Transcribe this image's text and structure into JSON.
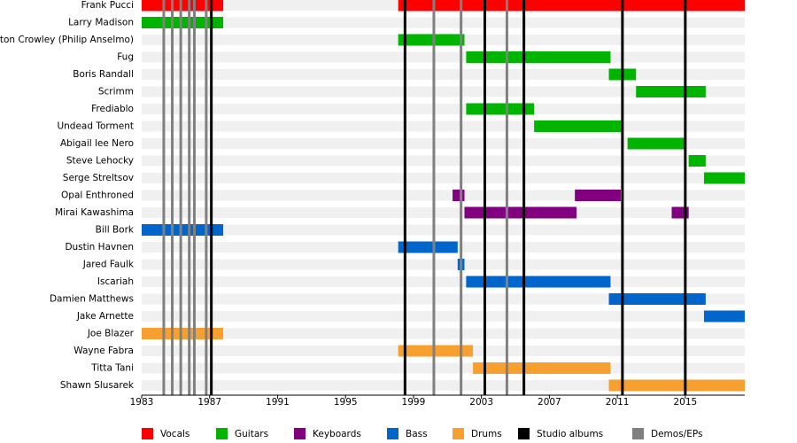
{
  "chart_data": {
    "type": "timeline",
    "xlim": [
      1983,
      2018.5
    ],
    "xticks": [
      1983,
      1987,
      1991,
      1995,
      1999,
      2003,
      2007,
      2011,
      2015
    ],
    "series": [
      {
        "name": "Vocals",
        "color": "#ff0000",
        "members": [
          {
            "name": "Frank Pucci",
            "periods": [
              [
                1983,
                1987.8
              ],
              [
                1998.1,
                2018.5
              ]
            ]
          }
        ]
      },
      {
        "name": "Guitars",
        "color": "#00b400",
        "members": [
          {
            "name": "Larry Madison",
            "periods": [
              [
                1983,
                1987.8
              ]
            ]
          },
          {
            "name": "Anton Crowley (Philip Anselmo)",
            "periods": [
              [
                1998.1,
                2002.0
              ]
            ]
          },
          {
            "name": "Fug",
            "periods": [
              [
                2002.1,
                2010.6
              ]
            ]
          },
          {
            "name": "Boris Randall",
            "periods": [
              [
                2010.5,
                2012.1
              ]
            ]
          },
          {
            "name": "Scrimm",
            "periods": [
              [
                2012.1,
                2016.2
              ]
            ]
          },
          {
            "name": "Frediablo",
            "periods": [
              [
                2002.1,
                2006.1
              ]
            ]
          },
          {
            "name": "Undead Torment",
            "periods": [
              [
                2006.1,
                2011.3
              ]
            ]
          },
          {
            "name": "Abigail lee Nero",
            "periods": [
              [
                2011.6,
                2015.0
              ]
            ]
          },
          {
            "name": "Steve Lehocky",
            "periods": [
              [
                2015.2,
                2016.2
              ]
            ]
          },
          {
            "name": "Serge Streltsov",
            "periods": [
              [
                2016.1,
                2018.5
              ]
            ]
          }
        ]
      },
      {
        "name": "Keyboards",
        "color": "#800080",
        "members": [
          {
            "name": "Opal Enthroned",
            "periods": [
              [
                2001.3,
                2002.0
              ],
              [
                2008.5,
                2011.2
              ]
            ]
          },
          {
            "name": "Mirai Kawashima",
            "periods": [
              [
                2002.0,
                2008.6
              ],
              [
                2014.2,
                2015.2
              ]
            ]
          }
        ]
      },
      {
        "name": "Bass",
        "color": "#0066cc",
        "members": [
          {
            "name": "Bill Bork",
            "periods": [
              [
                1983,
                1987.8
              ]
            ]
          },
          {
            "name": "Dustin Havnen",
            "periods": [
              [
                1998.1,
                2001.6
              ]
            ]
          },
          {
            "name": "Jared Faulk",
            "periods": [
              [
                2001.6,
                2002.0
              ]
            ]
          },
          {
            "name": "Iscariah",
            "periods": [
              [
                2002.1,
                2010.6
              ]
            ]
          },
          {
            "name": "Damien Matthews",
            "periods": [
              [
                2010.5,
                2016.2
              ]
            ]
          },
          {
            "name": "Jake Arnette",
            "periods": [
              [
                2016.1,
                2018.5
              ]
            ]
          }
        ]
      },
      {
        "name": "Drums",
        "color": "#f7a030",
        "members": [
          {
            "name": "Joe Blazer",
            "periods": [
              [
                1983,
                1987.8
              ]
            ]
          },
          {
            "name": "Wayne Fabra",
            "periods": [
              [
                1998.1,
                2002.5
              ]
            ]
          },
          {
            "name": "Titta Tani",
            "periods": [
              [
                2002.5,
                2010.6
              ]
            ]
          },
          {
            "name": "Shawn Slusarek",
            "periods": [
              [
                2010.5,
                2018.5
              ]
            ]
          }
        ]
      }
    ],
    "events": [
      {
        "name": "Studio albums",
        "color": "#000000",
        "values": [
          1987.1,
          1998.5,
          2003.2,
          2005.5,
          2011.3,
          2015.0
        ]
      },
      {
        "name": "Demos/EPs",
        "color": "#808080",
        "values": [
          1984.3,
          1984.8,
          1985.3,
          1985.8,
          1986.1,
          1986.8,
          2000.2,
          2001.8,
          2004.5
        ]
      }
    ]
  }
}
